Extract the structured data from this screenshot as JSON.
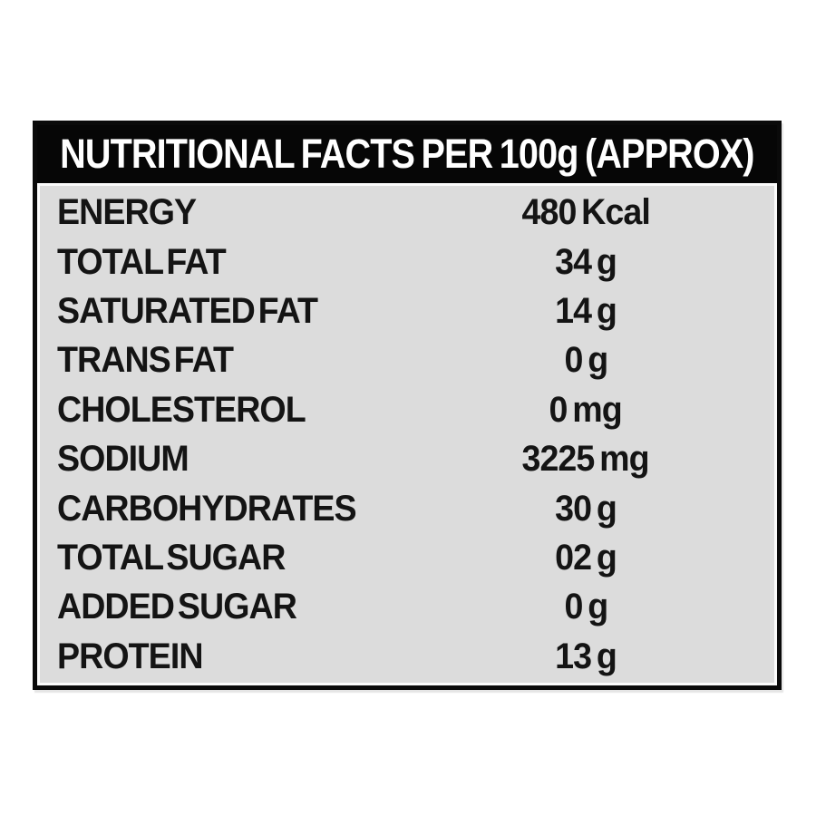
{
  "header": {
    "title": "NUTRITIONAL FACTS PER 100g (APPROX)"
  },
  "table": {
    "rows": [
      {
        "label": "ENERGY",
        "value": "480 Kcal"
      },
      {
        "label": "TOTAL FAT",
        "value": "34 g"
      },
      {
        "label": "SATURATED FAT",
        "value": "14 g"
      },
      {
        "label": "TRANS FAT",
        "value": "0 g"
      },
      {
        "label": "CHOLESTEROL",
        "value": "0 mg"
      },
      {
        "label": "SODIUM",
        "value": "3225 mg"
      },
      {
        "label": "CARBOHYDRATES",
        "value": "30 g"
      },
      {
        "label": "TOTAL SUGAR",
        "value": "02 g"
      },
      {
        "label": "ADDED SUGAR",
        "value": "0 g"
      },
      {
        "label": "PROTEIN",
        "value": "13 g"
      }
    ]
  },
  "colors": {
    "header_bg": "#060606",
    "body_bg": "#dcdcdc",
    "text": "#141414",
    "header_text": "#ffffff",
    "border": "#0a0a0a",
    "page_bg": "#ffffff"
  }
}
